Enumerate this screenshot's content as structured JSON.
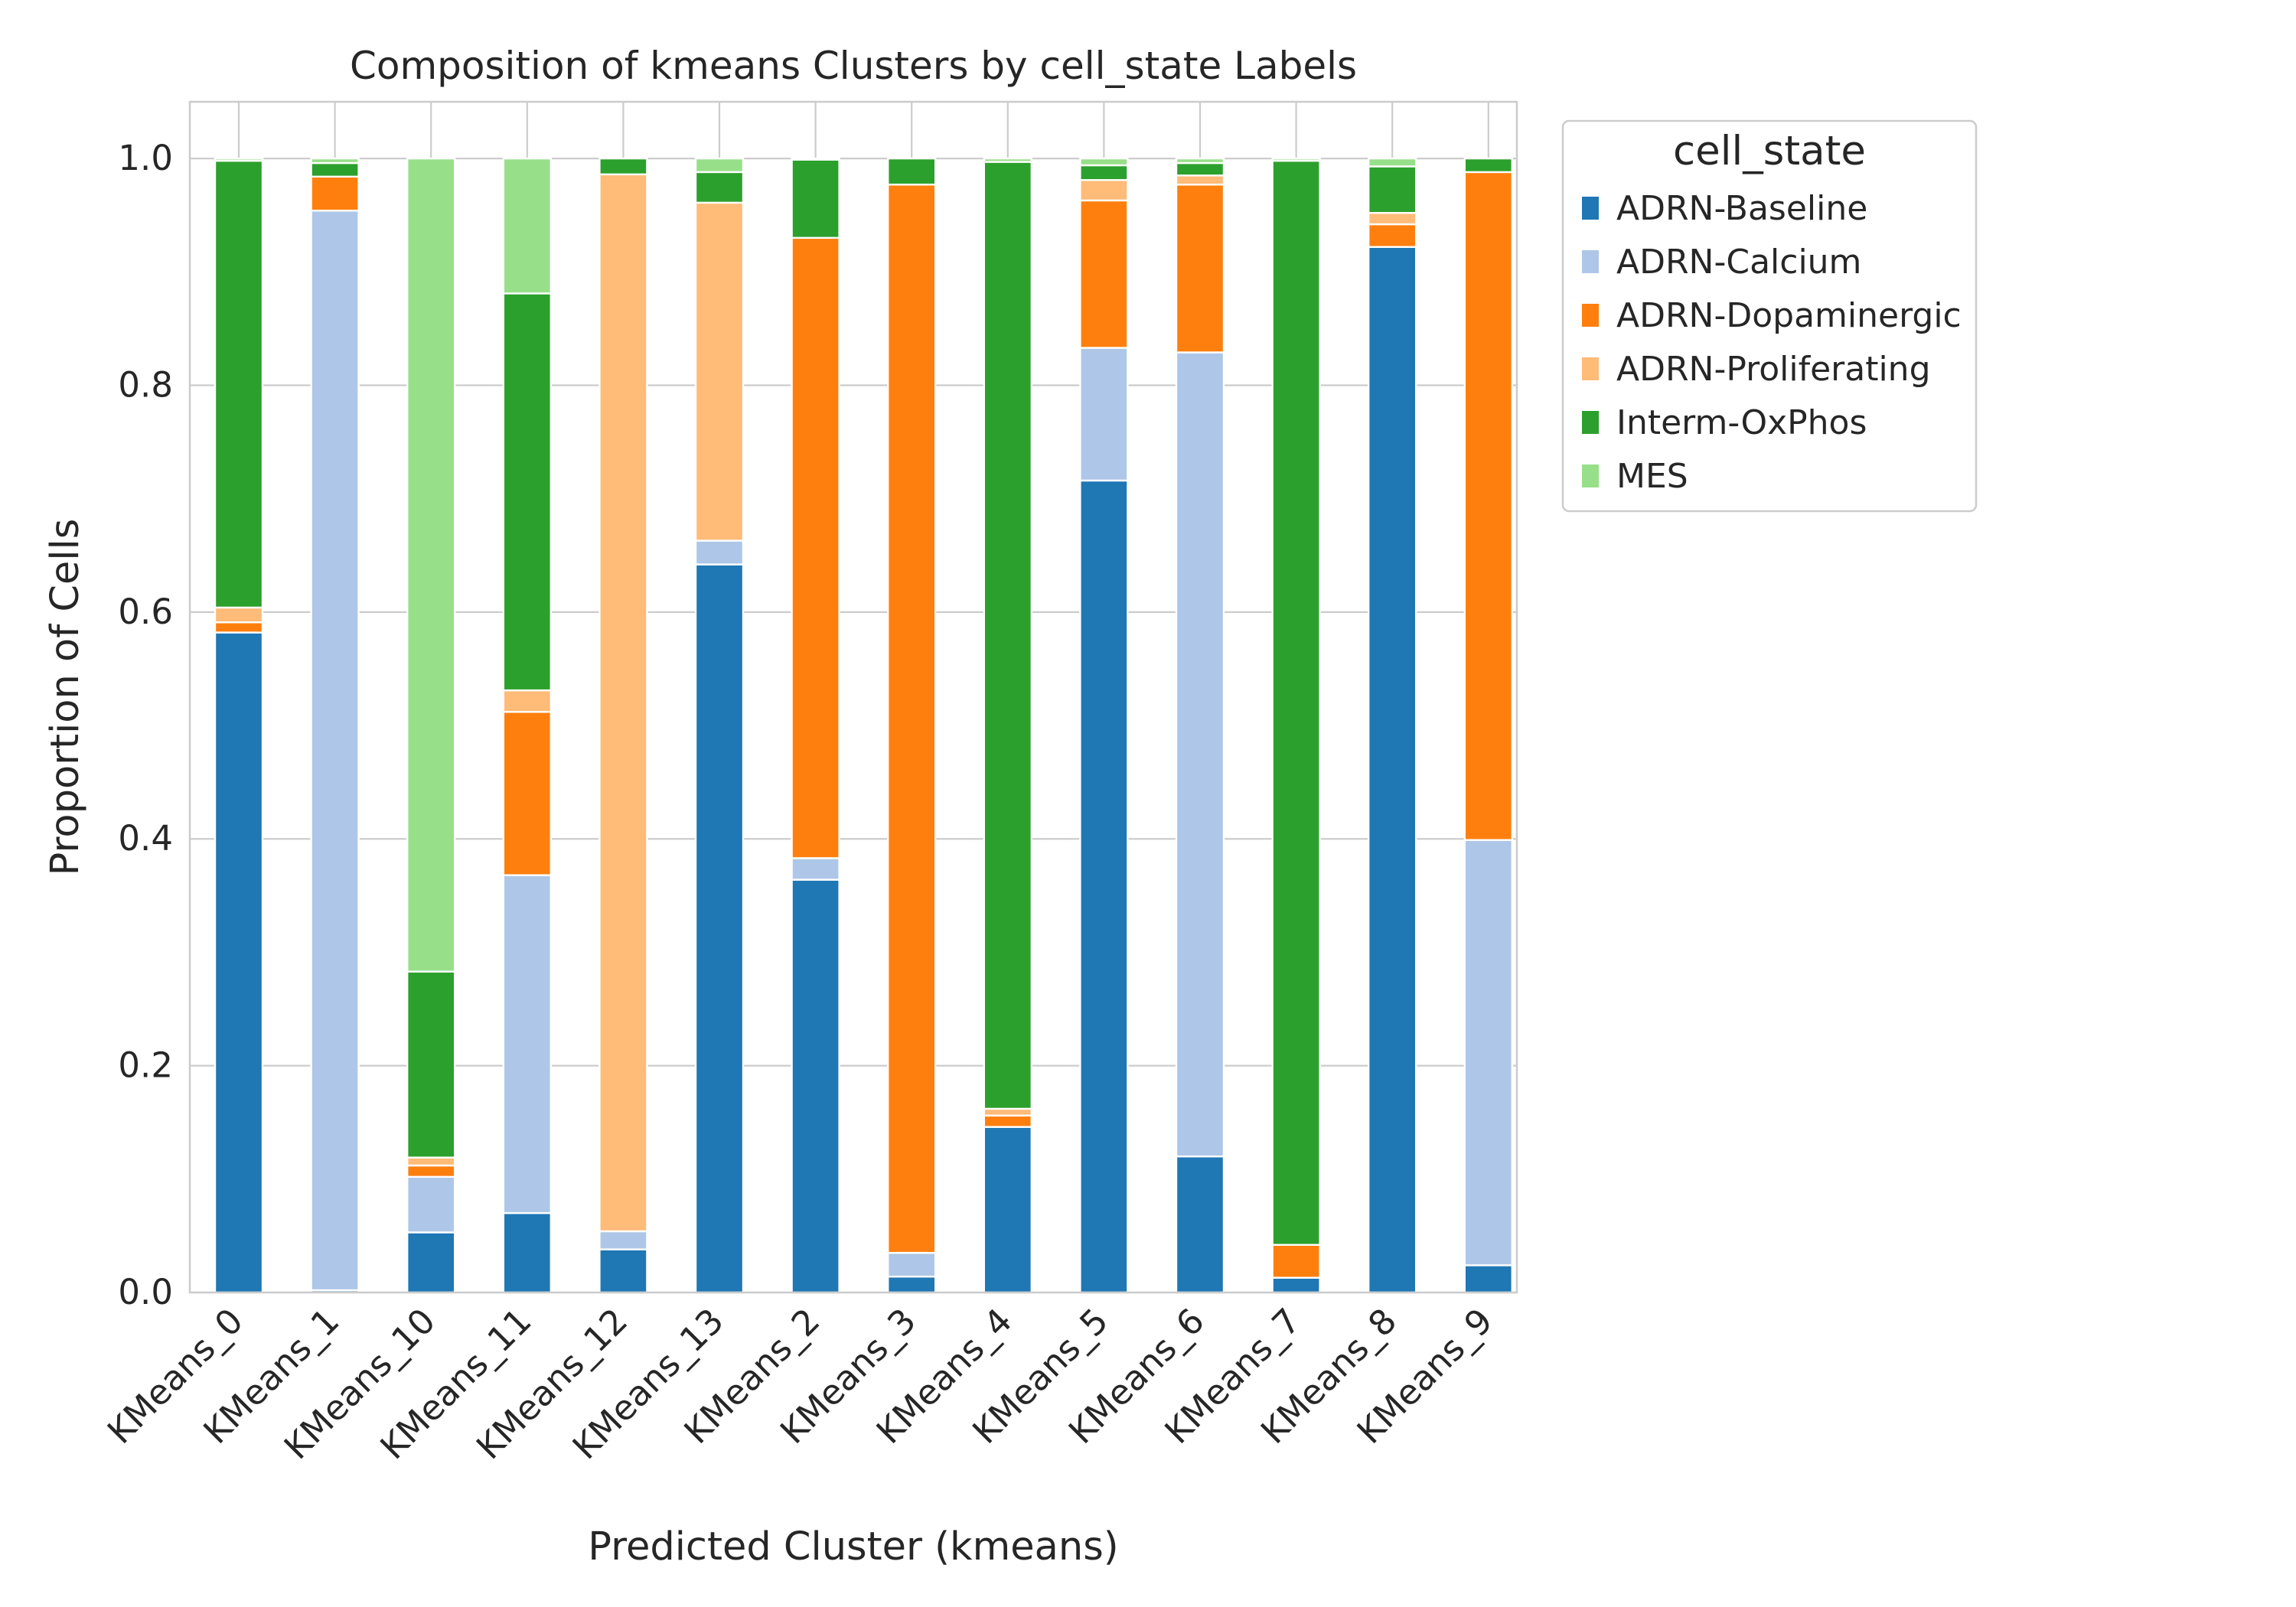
{
  "chart_data": {
    "type": "bar",
    "stacked": true,
    "title": "Composition of kmeans Clusters by cell_state Labels",
    "xlabel": "Predicted Cluster (kmeans)",
    "ylabel": "Proportion of Cells",
    "ylim": [
      0,
      1.05
    ],
    "yticks": [
      "0.0",
      "0.2",
      "0.4",
      "0.6",
      "0.8",
      "1.0"
    ],
    "grid": true,
    "legend_position": "outside right",
    "legend_title": "cell_state",
    "categories": [
      "KMeans_0",
      "KMeans_1",
      "KMeans_10",
      "KMeans_11",
      "KMeans_12",
      "KMeans_13",
      "KMeans_2",
      "KMeans_3",
      "KMeans_4",
      "KMeans_5",
      "KMeans_6",
      "KMeans_7",
      "KMeans_8",
      "KMeans_9"
    ],
    "series": [
      {
        "name": "ADRN-Baseline",
        "color": "#1f77b4",
        "values": [
          0.582,
          0.002,
          0.053,
          0.07,
          0.038,
          0.642,
          0.364,
          0.014,
          0.146,
          0.716,
          0.12,
          0.013,
          0.922,
          0.024
        ]
      },
      {
        "name": "ADRN-Calcium",
        "color": "#aec7e8",
        "values": [
          0.0,
          0.952,
          0.049,
          0.298,
          0.016,
          0.021,
          0.019,
          0.021,
          0.0,
          0.117,
          0.709,
          0.0,
          0.0,
          0.375
        ]
      },
      {
        "name": "ADRN-Dopaminergic",
        "color": "#ff7f0e",
        "values": [
          0.009,
          0.03,
          0.01,
          0.144,
          0.0,
          0.0,
          0.547,
          0.942,
          0.01,
          0.13,
          0.148,
          0.029,
          0.02,
          0.589
        ]
      },
      {
        "name": "ADRN-Proliferating",
        "color": "#ffbb78",
        "values": [
          0.013,
          0.0,
          0.007,
          0.019,
          0.932,
          0.298,
          0.0,
          0.0,
          0.006,
          0.018,
          0.008,
          0.0,
          0.01,
          0.0
        ]
      },
      {
        "name": "Interm-OxPhos",
        "color": "#2ca02c",
        "values": [
          0.394,
          0.012,
          0.164,
          0.35,
          0.014,
          0.027,
          0.069,
          0.023,
          0.835,
          0.013,
          0.011,
          0.956,
          0.041,
          0.012
        ]
      },
      {
        "name": "MES",
        "color": "#98df8a",
        "values": [
          0.002,
          0.004,
          0.717,
          0.119,
          0.0,
          0.012,
          0.001,
          0.0,
          0.003,
          0.006,
          0.004,
          0.002,
          0.007,
          0.0
        ]
      }
    ]
  }
}
